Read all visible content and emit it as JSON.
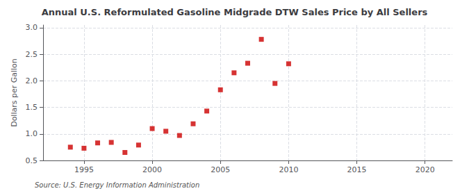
{
  "chart_data": {
    "type": "scatter",
    "title": "Annual U.S. Reformulated Gasoline Midgrade DTW Sales Price by All Sellers",
    "ylabel": "Dollars per Gallon",
    "annotations": [
      "Source: U.S. Energy Information Administration"
    ],
    "x": [
      1994,
      1995,
      1996,
      1997,
      1998,
      1999,
      2000,
      2001,
      2002,
      2003,
      2004,
      2005,
      2006,
      2007,
      2008,
      2009,
      2010
    ],
    "values": [
      0.75,
      0.73,
      0.83,
      0.84,
      0.65,
      0.79,
      1.1,
      1.05,
      0.97,
      1.19,
      1.43,
      1.83,
      2.15,
      2.33,
      2.78,
      1.95,
      2.32
    ],
    "color": "#cc0000",
    "marker": "square",
    "xlim": [
      1992,
      2022
    ],
    "xticks": [
      1995,
      2000,
      2005,
      2010,
      2015,
      2020
    ],
    "ylim": [
      0.5,
      3.05
    ],
    "yticks": [
      0.5,
      {
        "value": 1.0,
        "label": "1.0"
      },
      1.5,
      {
        "value": 2.0,
        "label": "2.0"
      },
      2.5,
      {
        "value": 3.0,
        "label": "3.0"
      }
    ],
    "grid": true
  }
}
